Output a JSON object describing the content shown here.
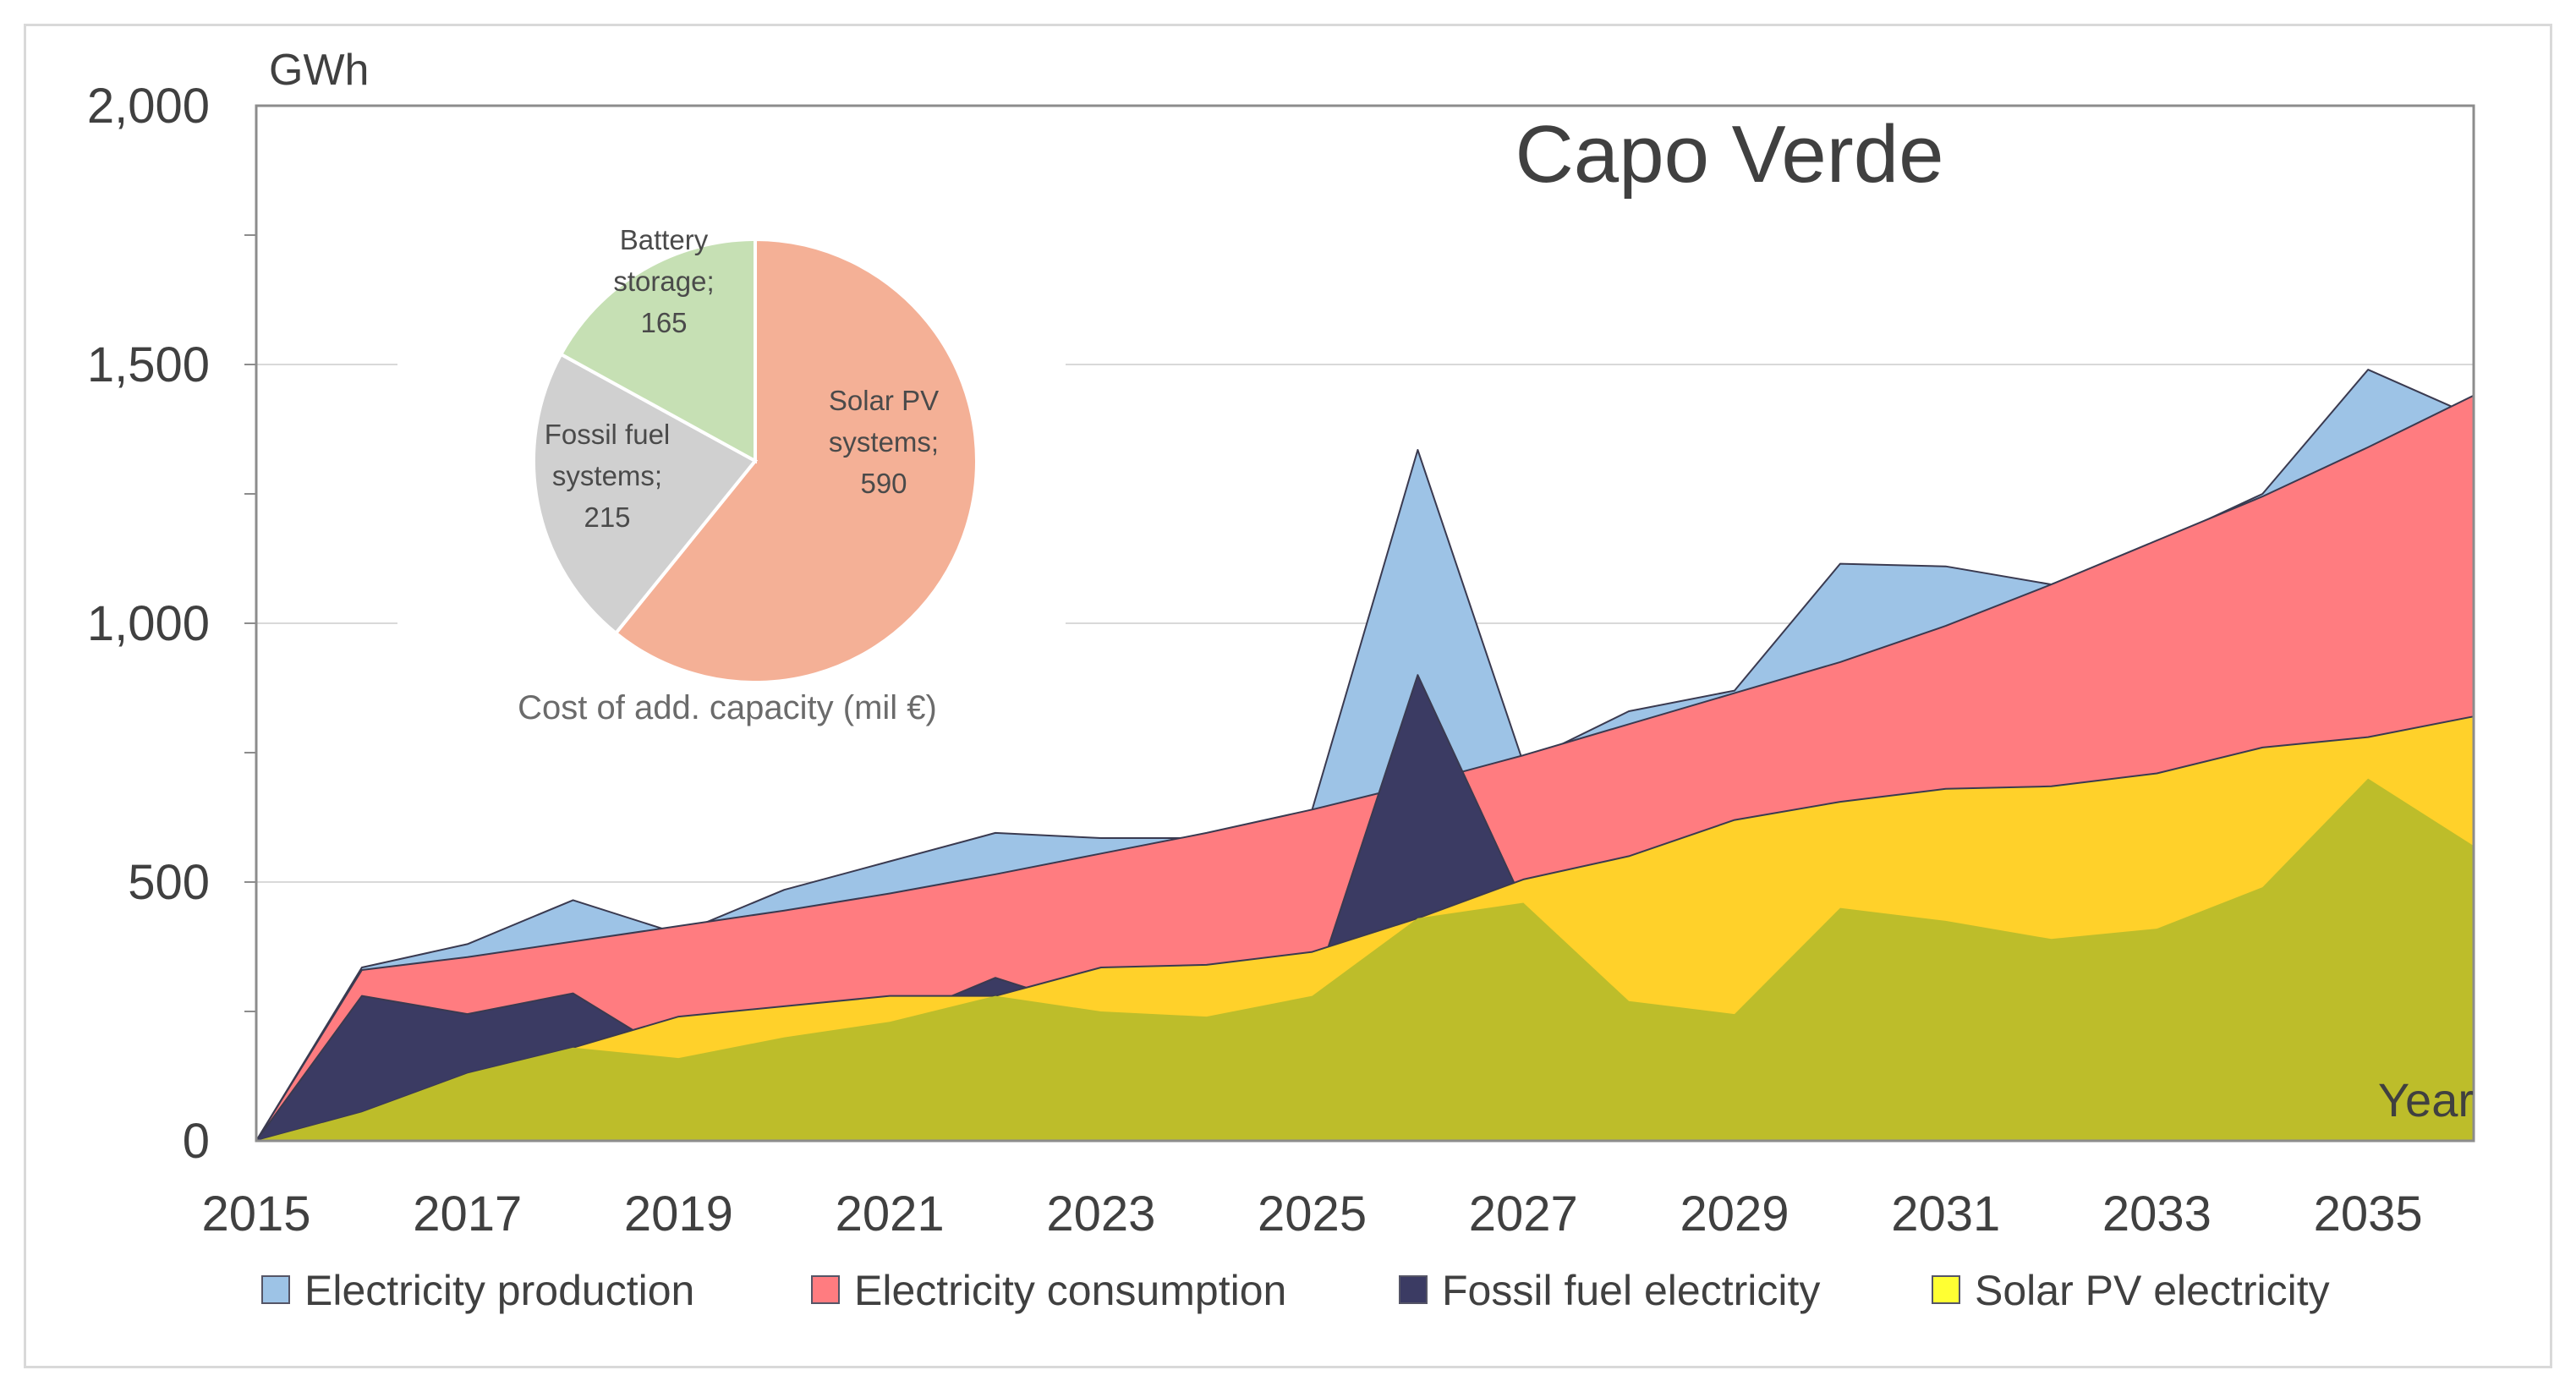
{
  "chart_data": {
    "type": "area",
    "title": "Capo Verde",
    "ylabel": "GWh",
    "xlabel": "Year",
    "ylim": [
      0,
      2000
    ],
    "yticks": [
      0,
      500,
      1000,
      1500,
      2000
    ],
    "ytick_labels": [
      "0",
      "500",
      "1,000",
      "1,500",
      "2,000"
    ],
    "xlim": [
      2015,
      2036
    ],
    "xticks": [
      2015,
      2017,
      2019,
      2021,
      2023,
      2025,
      2027,
      2029,
      2031,
      2033,
      2035
    ],
    "grid": true,
    "legend_position": "bottom",
    "x": [
      2015,
      2016,
      2017,
      2018,
      2019,
      2020,
      2021,
      2022,
      2023,
      2024,
      2025,
      2026,
      2027,
      2028,
      2029,
      2030,
      2031,
      2032,
      2033,
      2034,
      2035,
      2036
    ],
    "series": [
      {
        "name": "Electricity production",
        "color": "#9dc3e6",
        "values": [
          0,
          335,
          380,
          465,
          400,
          485,
          540,
          595,
          585,
          585,
          640,
          1335,
          730,
          830,
          870,
          1115,
          1110,
          1075,
          1155,
          1250,
          1490,
          1400
        ]
      },
      {
        "name": "Electricity consumption",
        "color": "#ff7c80",
        "values": [
          0,
          330,
          355,
          385,
          415,
          445,
          478,
          515,
          555,
          595,
          640,
          690,
          745,
          805,
          865,
          925,
          995,
          1075,
          1160,
          1245,
          1340,
          1440
        ]
      },
      {
        "name": "Fossil fuel electricity",
        "color": "#3b3b63",
        "values": [
          0,
          280,
          245,
          285,
          160,
          200,
          230,
          315,
          250,
          240,
          280,
          900,
          460,
          270,
          245,
          450,
          425,
          390,
          410,
          490,
          700,
          570
        ]
      },
      {
        "name": "Solar PV electricity",
        "color": "#ffd12a",
        "values": [
          0,
          55,
          130,
          180,
          240,
          260,
          280,
          280,
          335,
          340,
          365,
          430,
          505,
          550,
          620,
          655,
          680,
          685,
          710,
          760,
          780,
          820
        ]
      }
    ],
    "overlap_color": "#bdbd2a",
    "inset_pie": {
      "caption": "Cost of add. capacity (mil €)",
      "slices": [
        {
          "label_lines": [
            "Solar PV",
            "systems;",
            "590"
          ],
          "value": 590,
          "color": "#f4b096"
        },
        {
          "label_lines": [
            "Fossil fuel",
            "systems;",
            "215"
          ],
          "value": 215,
          "color": "#d0d0d0"
        },
        {
          "label_lines": [
            "Battery",
            "storage;",
            "165"
          ],
          "value": 165,
          "color": "#c6e0b4"
        }
      ]
    }
  }
}
